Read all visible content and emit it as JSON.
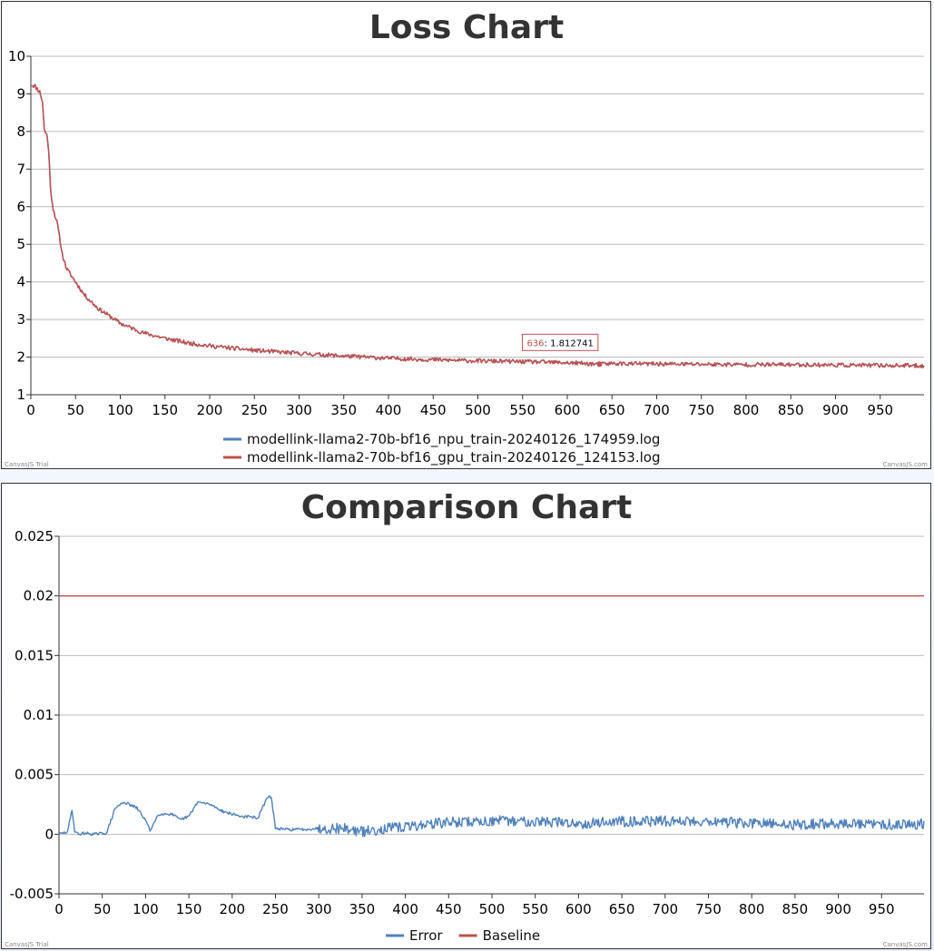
{
  "chart_data": [
    {
      "type": "line",
      "title": "Loss Chart",
      "xlim": [
        0,
        999
      ],
      "ylim": [
        1,
        10
      ],
      "x_ticks": [
        0,
        50,
        100,
        150,
        200,
        250,
        300,
        350,
        400,
        450,
        500,
        550,
        600,
        650,
        700,
        750,
        800,
        850,
        900,
        950
      ],
      "y_ticks": [
        1,
        2,
        3,
        4,
        5,
        6,
        7,
        8,
        9,
        10
      ],
      "grid": true,
      "legend_position": "bottom",
      "series": [
        {
          "name": "modellink-llama2-70b-bf16_npu_train-20240126_174959.log",
          "color": "#4f81bc",
          "x": [
            0,
            5,
            10,
            13,
            15,
            18,
            20,
            22,
            25,
            30,
            35,
            40,
            50,
            60,
            75,
            100,
            125,
            150,
            175,
            200,
            250,
            300,
            350,
            400,
            450,
            500,
            550,
            600,
            636,
            650,
            700,
            750,
            800,
            850,
            900,
            950,
            999
          ],
          "y": [
            9.25,
            9.2,
            9.05,
            8.8,
            8.05,
            7.9,
            7.5,
            6.45,
            5.95,
            5.5,
            4.75,
            4.35,
            4.0,
            3.65,
            3.3,
            2.9,
            2.65,
            2.5,
            2.38,
            2.3,
            2.18,
            2.1,
            2.03,
            1.97,
            1.93,
            1.9,
            1.88,
            1.85,
            1.812741,
            1.83,
            1.82,
            1.81,
            1.8,
            1.8,
            1.79,
            1.78,
            1.77
          ]
        },
        {
          "name": "modellink-llama2-70b-bf16_gpu_train-20240126_124153.log",
          "color": "#c0504e",
          "x": [
            0,
            5,
            10,
            13,
            15,
            18,
            20,
            22,
            25,
            30,
            35,
            40,
            50,
            60,
            75,
            100,
            125,
            150,
            175,
            200,
            250,
            300,
            350,
            400,
            450,
            500,
            550,
            600,
            636,
            650,
            700,
            750,
            800,
            850,
            900,
            950,
            999
          ],
          "y": [
            9.25,
            9.2,
            9.05,
            8.8,
            8.05,
            7.9,
            7.5,
            6.45,
            5.95,
            5.5,
            4.75,
            4.35,
            4.0,
            3.65,
            3.3,
            2.9,
            2.65,
            2.5,
            2.38,
            2.3,
            2.18,
            2.1,
            2.03,
            1.97,
            1.93,
            1.9,
            1.88,
            1.85,
            1.812741,
            1.83,
            1.82,
            1.81,
            1.8,
            1.8,
            1.79,
            1.78,
            1.77
          ]
        }
      ],
      "tooltip": {
        "x": "636",
        "y": "1.812741"
      }
    },
    {
      "type": "line",
      "title": "Comparison Chart",
      "xlim": [
        0,
        999
      ],
      "ylim": [
        -0.005,
        0.025
      ],
      "x_ticks": [
        0,
        50,
        100,
        150,
        200,
        250,
        300,
        350,
        400,
        450,
        500,
        550,
        600,
        650,
        700,
        750,
        800,
        850,
        900,
        950
      ],
      "y_ticks": [
        "-0.005",
        "0",
        "0.005",
        "0.01",
        "0.015",
        "0.02",
        "0.025"
      ],
      "grid": true,
      "legend_position": "bottom",
      "series": [
        {
          "name": "Error",
          "color": "#4f81bc",
          "x": [
            0,
            10,
            15,
            18,
            22,
            30,
            40,
            55,
            65,
            75,
            90,
            100,
            105,
            115,
            130,
            140,
            150,
            160,
            175,
            190,
            210,
            230,
            240,
            245,
            250,
            260,
            280,
            300,
            330,
            350,
            380,
            400,
            430,
            450,
            500,
            550,
            600,
            650,
            700,
            750,
            800,
            850,
            900,
            950,
            999
          ],
          "y": [
            0,
            0.0002,
            0.0021,
            0.0003,
            0.0,
            0.0001,
            0.0,
            0.0001,
            0.0022,
            0.0027,
            0.0022,
            0.0012,
            0.0003,
            0.0017,
            0.0017,
            0.0012,
            0.0015,
            0.0027,
            0.0025,
            0.0019,
            0.0015,
            0.0014,
            0.003,
            0.0032,
            0.0005,
            0.0004,
            0.0004,
            0.0005,
            0.0005,
            0.0002,
            0.0005,
            0.0006,
            0.0009,
            0.001,
            0.0011,
            0.0011,
            0.0009,
            0.0011,
            0.0011,
            0.0011,
            0.0009,
            0.0008,
            0.0009,
            0.0008,
            0.0009
          ]
        },
        {
          "name": "Baseline",
          "color": "#c0504e",
          "x": [
            0,
            999
          ],
          "y": [
            0.02,
            0.02
          ]
        }
      ]
    }
  ],
  "watermarks": {
    "left": "CanvasJS Trial",
    "right": "CanvasJS.com"
  }
}
